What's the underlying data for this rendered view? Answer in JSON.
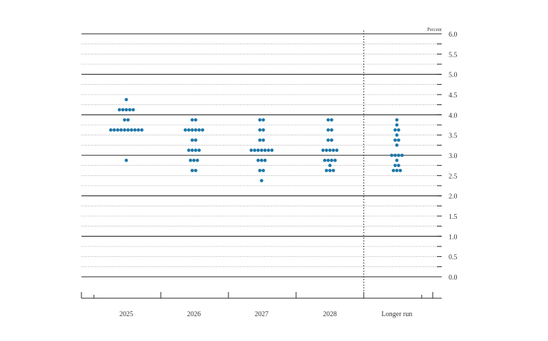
{
  "chart_data": {
    "type": "scatter",
    "unit_label": "Percent",
    "ylim": [
      0.0,
      6.0
    ],
    "y_ticks": [
      "0.0",
      "0.5",
      "1.0",
      "1.5",
      "2.0",
      "2.5",
      "3.0",
      "3.5",
      "4.0",
      "4.5",
      "5.0",
      "5.5",
      "6.0"
    ],
    "categories": [
      "2025",
      "2026",
      "2027",
      "2028",
      "Longer run"
    ],
    "grid": "solid at whole percents, dotted at 0.25 steps",
    "divider_before": "Longer run",
    "dot_color": "#1f77a8",
    "series": [
      {
        "category": "2025",
        "dots": [
          {
            "y": 4.375,
            "count": 1
          },
          {
            "y": 4.125,
            "count": 5
          },
          {
            "y": 3.875,
            "count": 2
          },
          {
            "y": 3.625,
            "count": 10
          },
          {
            "y": 2.875,
            "count": 1
          }
        ]
      },
      {
        "category": "2026",
        "dots": [
          {
            "y": 3.875,
            "count": 2
          },
          {
            "y": 3.625,
            "count": 6
          },
          {
            "y": 3.375,
            "count": 2
          },
          {
            "y": 3.125,
            "count": 4
          },
          {
            "y": 2.875,
            "count": 3
          },
          {
            "y": 2.625,
            "count": 2
          }
        ]
      },
      {
        "category": "2027",
        "dots": [
          {
            "y": 3.875,
            "count": 2
          },
          {
            "y": 3.625,
            "count": 2
          },
          {
            "y": 3.375,
            "count": 2
          },
          {
            "y": 3.125,
            "count": 7
          },
          {
            "y": 2.875,
            "count": 3
          },
          {
            "y": 2.625,
            "count": 2
          },
          {
            "y": 2.375,
            "count": 1
          }
        ]
      },
      {
        "category": "2028",
        "dots": [
          {
            "y": 3.875,
            "count": 2
          },
          {
            "y": 3.625,
            "count": 2
          },
          {
            "y": 3.375,
            "count": 2
          },
          {
            "y": 3.125,
            "count": 5
          },
          {
            "y": 2.875,
            "count": 4
          },
          {
            "y": 2.75,
            "count": 1
          },
          {
            "y": 2.625,
            "count": 3
          }
        ]
      },
      {
        "category": "Longer run",
        "dots": [
          {
            "y": 3.875,
            "count": 1
          },
          {
            "y": 3.75,
            "count": 1
          },
          {
            "y": 3.625,
            "count": 2
          },
          {
            "y": 3.5,
            "count": 1
          },
          {
            "y": 3.375,
            "count": 2
          },
          {
            "y": 3.25,
            "count": 1
          },
          {
            "y": 3.0,
            "count": 4
          },
          {
            "y": 2.875,
            "count": 1
          },
          {
            "y": 2.75,
            "count": 2
          },
          {
            "y": 2.625,
            "count": 3
          }
        ]
      }
    ]
  }
}
